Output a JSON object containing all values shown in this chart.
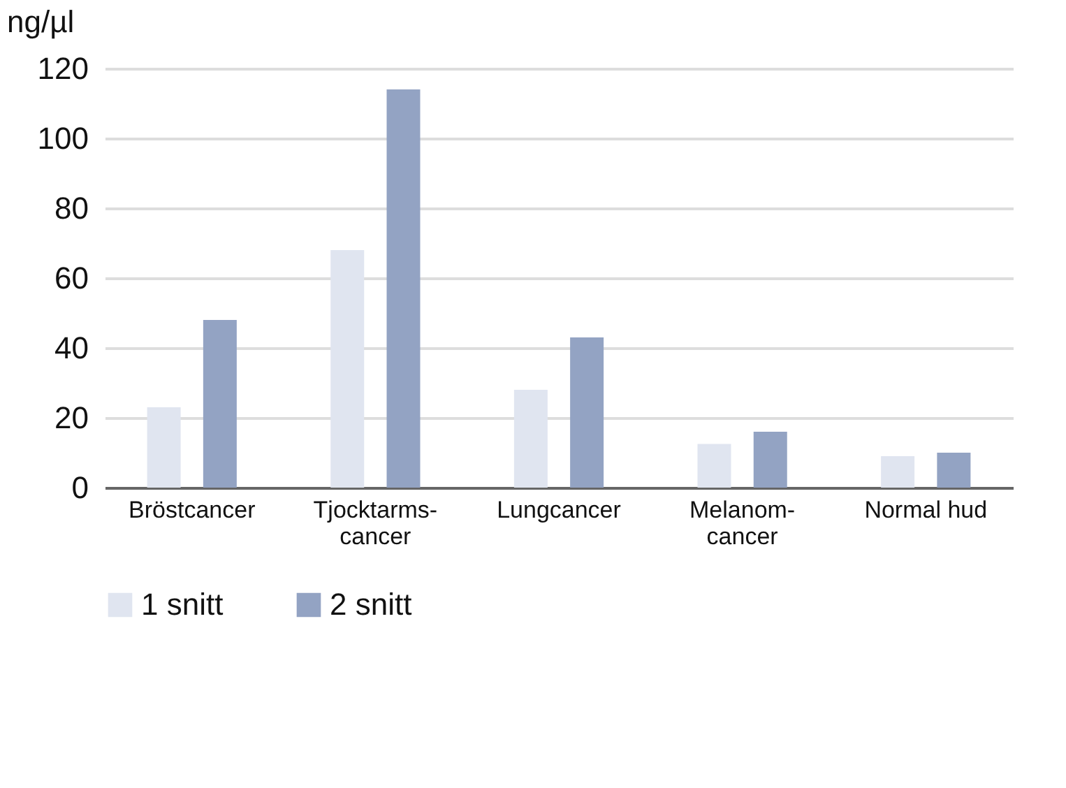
{
  "chart_data": {
    "type": "bar",
    "ylabel": "ng/µl",
    "categories": [
      "Bröstcancer",
      "Tjocktarms-cancer",
      "Lungcancer",
      "Melanom-cancer",
      "Normal hud"
    ],
    "series": [
      {
        "name": "1 snitt",
        "color": "#e0e5f0",
        "values": [
          23,
          68,
          28,
          12.5,
          9
        ]
      },
      {
        "name": "2 snitt",
        "color": "#93a3c3",
        "values": [
          48,
          114,
          43,
          16,
          10
        ]
      }
    ],
    "ylim": [
      0,
      120
    ],
    "yticks": [
      0,
      20,
      40,
      60,
      80,
      100,
      120
    ],
    "grid": "y",
    "legend": "bottom left"
  }
}
